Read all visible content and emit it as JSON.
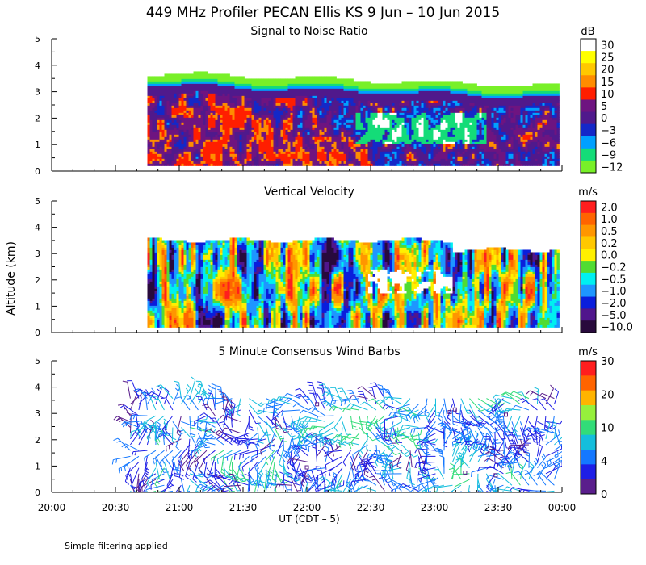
{
  "title": "449 MHz Profiler PECAN Ellis KS  9 Jun – 10 Jun 2015",
  "ylabel": "Altitude (km)",
  "xlabel": "UT  (CDT – 5)",
  "footnote": "Simple filtering applied",
  "x_ticks": [
    "20:00",
    "20:30",
    "21:00",
    "21:30",
    "22:00",
    "22:30",
    "23:00",
    "23:30",
    "00:00"
  ],
  "y_ticks": [
    "0",
    "1",
    "2",
    "3",
    "4",
    "5"
  ],
  "chart_data": [
    {
      "type": "heatmap",
      "title": "Signal to Noise Ratio",
      "ylim": [
        0,
        5
      ],
      "x_range": [
        "20:00",
        "00:00"
      ],
      "data_extent_x": [
        "20:45",
        "23:58"
      ],
      "data_extent_y_km": [
        0.2,
        3.5
      ],
      "colorbar": {
        "unit": "dB",
        "labels": [
          "30",
          "25",
          "20",
          "15",
          "10",
          "5",
          "0",
          "−3",
          "−6",
          "−9",
          "−12"
        ],
        "colors": [
          "#ffffff",
          "#ffff00",
          "#ffc800",
          "#ff8c00",
          "#ff1e00",
          "#6e1480",
          "#50198c",
          "#1428c8",
          "#00a0ff",
          "#14dc78",
          "#78f028"
        ]
      }
    },
    {
      "type": "heatmap",
      "title": "Vertical Velocity",
      "ylim": [
        0,
        5
      ],
      "x_range": [
        "20:00",
        "00:00"
      ],
      "data_extent_x": [
        "20:45",
        "23:58"
      ],
      "data_extent_y_km": [
        0.2,
        3.6
      ],
      "colorbar": {
        "unit": "m/s",
        "labels": [
          "2.0",
          "1.0",
          "0.5",
          "0.2",
          "0.0",
          "−0.2",
          "−0.5",
          "−1.0",
          "−2.0",
          "−5.0",
          "−10.0"
        ],
        "colors": [
          "#ff1e1e",
          "#ff6400",
          "#ff9600",
          "#ffc800",
          "#fff000",
          "#50dc32",
          "#00f0f0",
          "#1e96ff",
          "#0a1edc",
          "#50168c",
          "#280a3c"
        ]
      }
    },
    {
      "type": "scatter",
      "title": "5 Minute Consensus Wind Barbs",
      "ylim": [
        0,
        5
      ],
      "x_range": [
        "20:00",
        "00:00"
      ],
      "data_extent_x": [
        "20:37",
        "23:58"
      ],
      "data_extent_y_km": [
        0.0,
        3.7
      ],
      "colorbar": {
        "unit": "m/s",
        "labels": [
          "30",
          "20",
          "10",
          "4",
          "0"
        ],
        "colors": [
          "#ff1e1e",
          "#ff6400",
          "#ffb400",
          "#96f03c",
          "#32dc78",
          "#14bedc",
          "#1478ff",
          "#1e1ee6",
          "#5a1e8c"
        ]
      }
    }
  ]
}
